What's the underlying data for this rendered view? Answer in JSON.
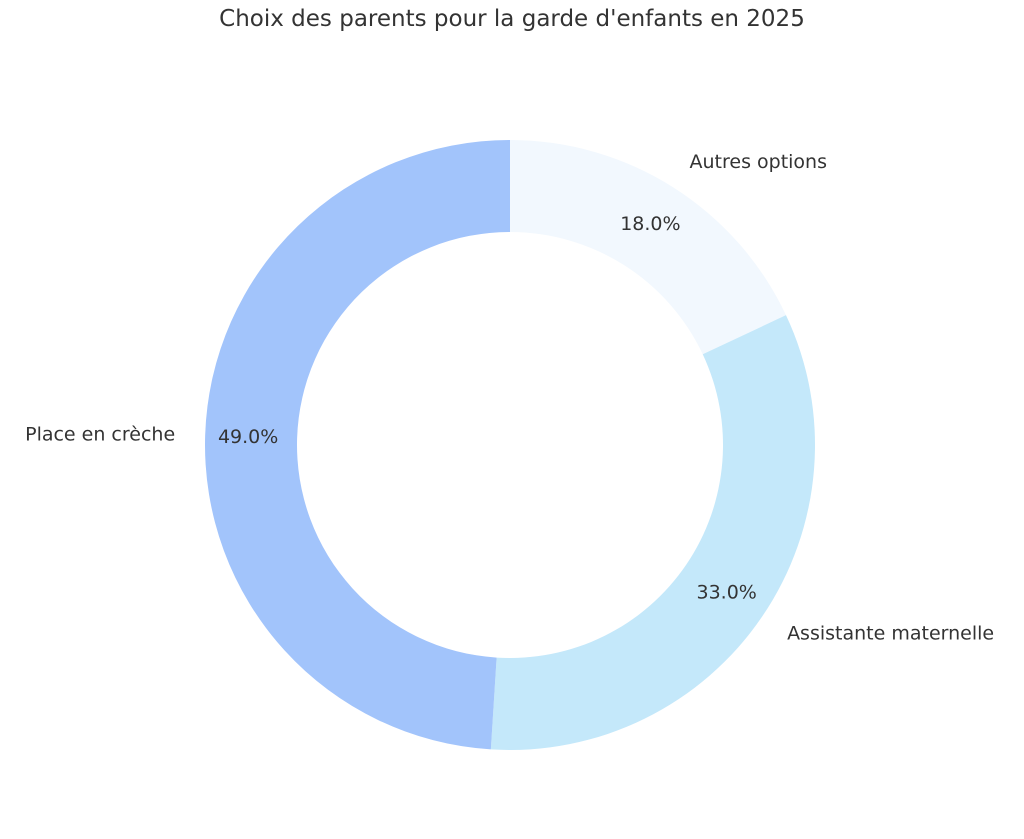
{
  "chart_data": {
    "type": "pie",
    "variant": "donut",
    "title": "Choix des parents pour la garde d'enfants en 2025",
    "slices": [
      {
        "label": "Autres options",
        "value": 18.0,
        "pct_label": "18.0%",
        "color": "#f2f8fe"
      },
      {
        "label": "Assistante maternelle",
        "value": 33.0,
        "pct_label": "33.0%",
        "color": "#c4e8fa"
      },
      {
        "label": "Place en crèche",
        "value": 49.0,
        "pct_label": "49.0%",
        "color": "#a2c4fb"
      }
    ],
    "start": "top",
    "direction": "clockwise"
  }
}
